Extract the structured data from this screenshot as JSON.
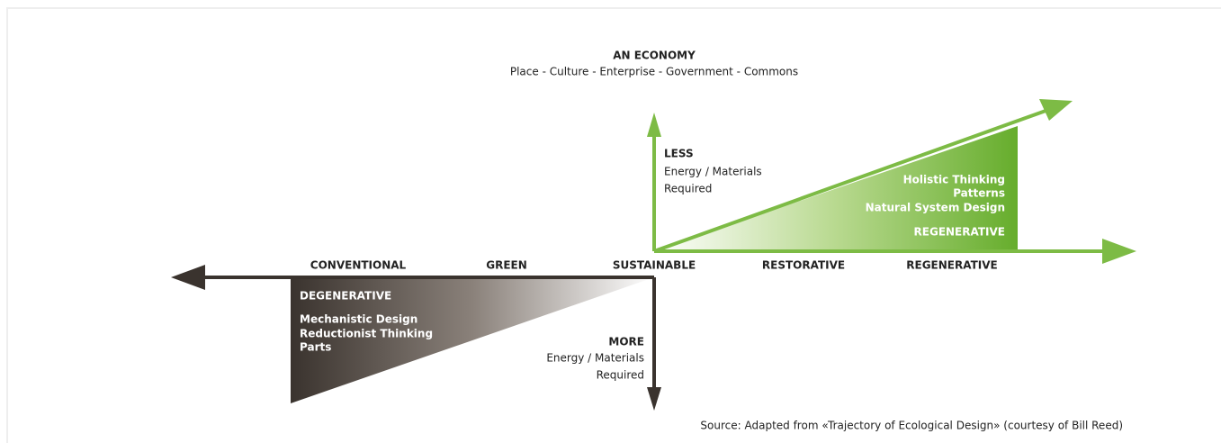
{
  "header": {
    "title": "AN ECONOMY",
    "subtitle": "Place - Culture - Enterprise - Government - Commons"
  },
  "less": {
    "title": "LESS",
    "lines": [
      "Energy / Materials",
      "Required"
    ]
  },
  "more": {
    "title": "MORE",
    "lines": [
      "Energy / Materials",
      "Required"
    ]
  },
  "axis_labels": [
    "CONVENTIONAL",
    "GREEN",
    "SUSTAINABLE",
    "RESTORATIVE",
    "REGENERATIVE"
  ],
  "degenerative": {
    "title": "DEGENERATIVE",
    "lines": [
      "Mechanistic Design",
      "Reductionist Thinking",
      "Parts"
    ]
  },
  "regenerative": {
    "title": "REGENERATIVE",
    "lines": [
      "Holistic Thinking",
      "Patterns",
      "Natural System Design"
    ]
  },
  "source": "Source: Adapted from «Trajectory of Ecological Design» (courtesy of Bill Reed)"
}
